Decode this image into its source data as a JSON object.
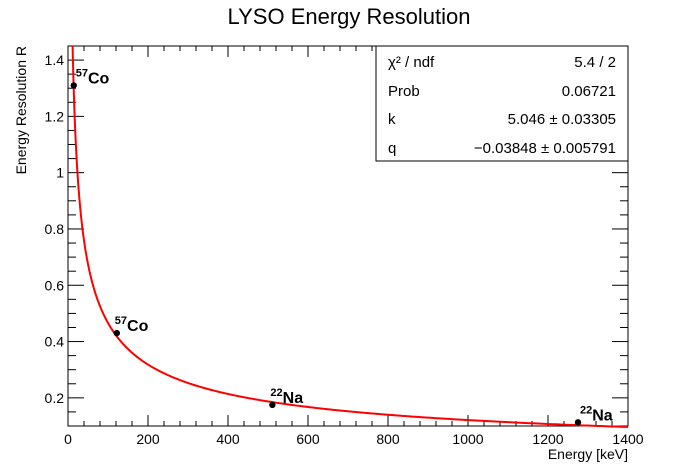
{
  "chart_data": {
    "type": "scatter",
    "title": "LYSO Energy Resolution",
    "xlabel": "Energy [keV]",
    "ylabel": "Energy Resolution R",
    "xlim": [
      0,
      1400
    ],
    "ylim": [
      0.1,
      1.45
    ],
    "x_ticks": [
      "0",
      "200",
      "400",
      "600",
      "800",
      "1000",
      "1200",
      "1400"
    ],
    "y_ticks": [
      "0.2",
      "0.4",
      "0.6",
      "0.8",
      "1",
      "1.2",
      "1.4"
    ],
    "grid": false,
    "points": [
      {
        "x": 14.4,
        "y": 1.31,
        "isotope_mass": "57",
        "isotope_symbol": "Co"
      },
      {
        "x": 122,
        "y": 0.43,
        "isotope_mass": "57",
        "isotope_symbol": "Co"
      },
      {
        "x": 511,
        "y": 0.175,
        "isotope_mass": "22",
        "isotope_symbol": "Na"
      },
      {
        "x": 1275,
        "y": 0.113,
        "isotope_mass": "22",
        "isotope_symbol": "Na"
      }
    ],
    "fit": {
      "function": "R = k / sqrt(E) + q",
      "k": 5.046,
      "q": -0.03848,
      "color": "#ff0000"
    },
    "marker_color": "#000000",
    "stats_box": {
      "placement": "top-right",
      "rows": [
        {
          "label": "χ² / ndf",
          "value": "5.4 / 2"
        },
        {
          "label": "Prob",
          "value": "0.06721"
        },
        {
          "label": "k",
          "value": "5.046 ± 0.03305"
        },
        {
          "label": "q",
          "value": "−0.03848 ± 0.005791"
        }
      ]
    }
  }
}
